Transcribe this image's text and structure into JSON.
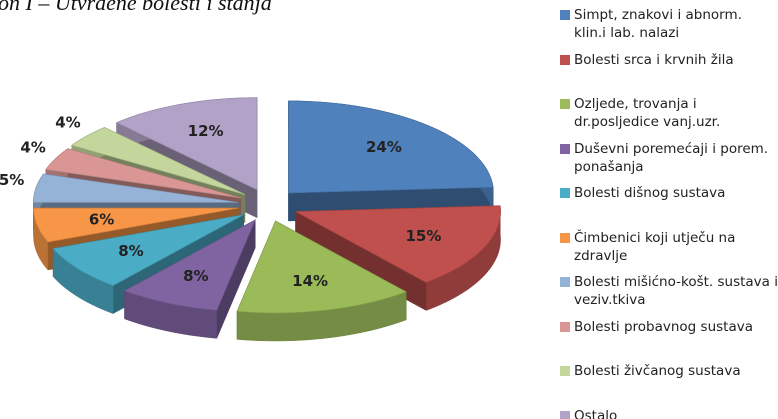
{
  "chart_data": {
    "type": "pie",
    "title": "on I – Utvrđene bolesti i stanja",
    "categories": [
      "Simpt, znakovi i abnorm. klin.i lab. nalazi",
      "Bolesti srca i krvnih žila",
      "Ozljede, trovanja i dr.posljedice vanj.uzr.",
      "Duševni poremećaji i porem. ponašanja",
      "Bolesti dišnog sustava",
      "Čimbenici koji utječu na zdravlje",
      "Bolesti mišićno-košt. sustava i veziv.tkiva",
      "Bolesti probavnog sustava",
      "Bolesti živčanog sustava",
      "Ostalo"
    ],
    "values": [
      24,
      15,
      14,
      8,
      8,
      6,
      5,
      4,
      4,
      12
    ],
    "value_labels": [
      "24%",
      "15%",
      "14%",
      "8%",
      "8%",
      "6%",
      "5%",
      "4%",
      "4%",
      "12%"
    ],
    "colors": [
      "#4f81bd",
      "#c0504d",
      "#9bbb59",
      "#8064a2",
      "#4bacc6",
      "#f79646",
      "#95b3d7",
      "#d99694",
      "#c3d69b",
      "#b3a2c7"
    ],
    "legend": "right"
  }
}
